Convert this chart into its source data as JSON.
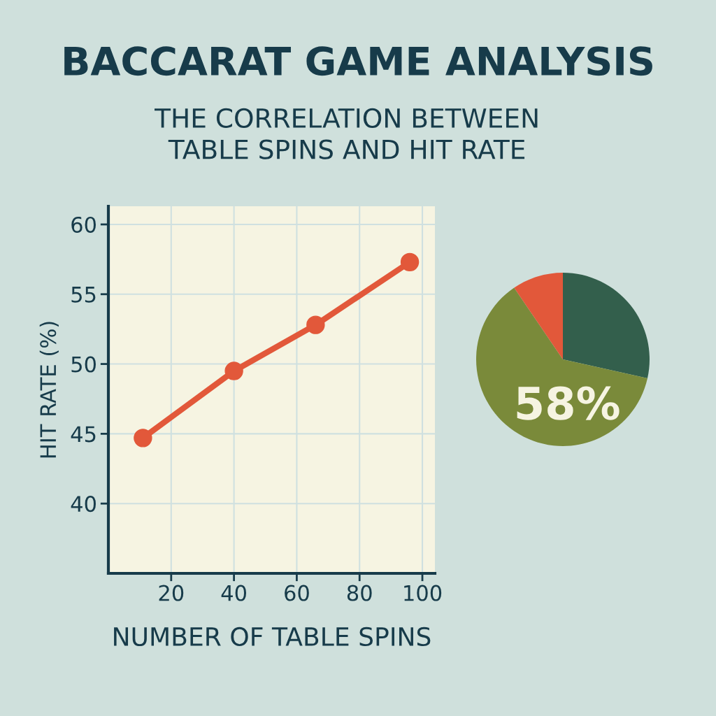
{
  "chart_data": [
    {
      "type": "line",
      "title": "BACCARAT GAME ANALYSIS",
      "subtitle": "THE CORRELATION BETWEEN\nTABLE SPINS AND HIT RATE",
      "xlabel": "NUMBER OF TABLE SPINS",
      "ylabel": "HIT RATE (%)",
      "x": [
        11,
        40,
        66,
        96
      ],
      "series": [
        {
          "color": "#e2583a",
          "values": [
            44.7,
            49.5,
            52.8,
            57.3
          ]
        }
      ],
      "xlim": [
        0,
        104
      ],
      "xticks": [
        20,
        40,
        60,
        80,
        100
      ],
      "ylim": [
        35,
        61.3
      ],
      "yticks": [
        40,
        45,
        50,
        55,
        60
      ],
      "grid": true,
      "marker": "circle",
      "line_style": "solid",
      "legend": false
    },
    {
      "type": "pie",
      "categories": [
        null,
        null,
        null
      ],
      "values": [
        28.5,
        62,
        9.5
      ],
      "colors": [
        "#335f4c",
        "#7a8a3a",
        "#e2583a"
      ],
      "annotations": [
        "58%"
      ]
    }
  ]
}
